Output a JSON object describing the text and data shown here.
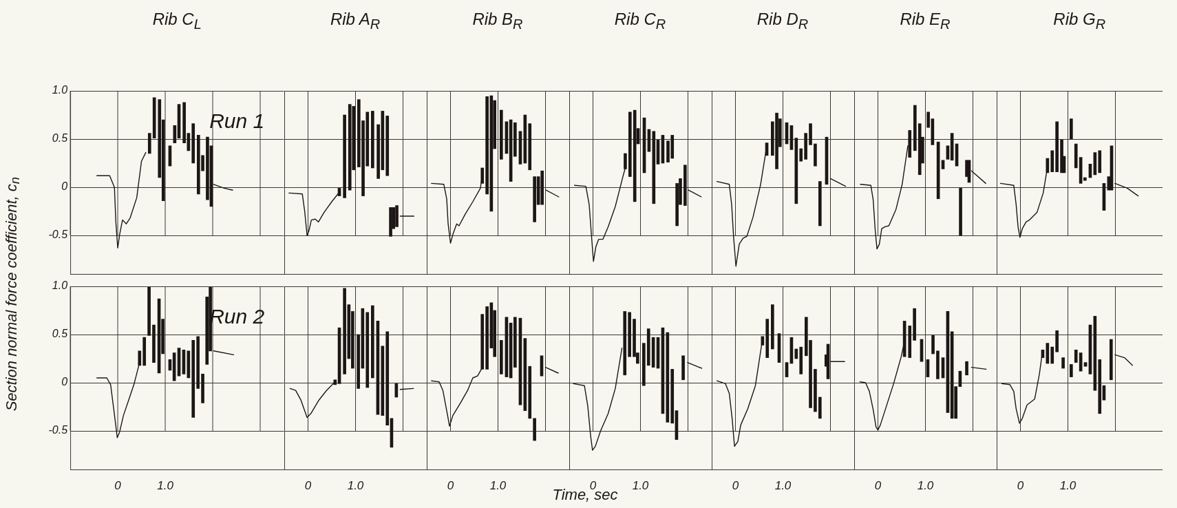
{
  "chart_data": [
    {
      "type": "line",
      "title": "Rib C$_{L}$",
      "ylabel": "Section normal force coefficient, c$_{n}$",
      "annotations": [
        "Run 1"
      ],
      "xlim": [
        -1,
        3.5
      ],
      "ylim": [
        -0.9,
        1
      ],
      "xticks": [
        -1,
        0,
        1,
        2,
        3
      ],
      "yticks": [
        -0.5,
        0,
        0.5,
        {
          "value": 1,
          "label": "1.0"
        }
      ],
      "grid": true,
      "tick_labels": "y",
      "series": [
        {
          "color": "#1c1716",
          "x": [
            -0.44,
            -0.17,
            -0.07,
            -0.04,
            0,
            0.04,
            0.1,
            0.18,
            0.26,
            0.4,
            0.5,
            0.59,
            1.3,
            2.02,
            2.24,
            2.42
          ],
          "values": [
            0.12,
            0.12,
            0,
            -0.36,
            -0.63,
            -0.49,
            -0.34,
            -0.38,
            -0.32,
            -0.11,
            0.27,
            0.36,
            null,
            0.03,
            -0.01,
            -0.03
          ]
        },
        {
          "type": "bar",
          "color": "#1c1716",
          "x": [
            0.67,
            0.77,
            0.88,
            0.96,
            1.1,
            1.2,
            1.29,
            1.4,
            1.49,
            1.59,
            1.7,
            1.79,
            1.89,
            1.97
          ],
          "base": [
            0.35,
            0.51,
            0.1,
            -0.14,
            0.22,
            0.46,
            0.51,
            0.46,
            0.38,
            0.25,
            -0.07,
            0.17,
            -0.13,
            -0.2
          ],
          "values": [
            0.21,
            0.42,
            0.81,
            0.84,
            0.21,
            0.18,
            0.35,
            0.42,
            0.18,
            0.41,
            0.61,
            0.16,
            0.65,
            0.63
          ]
        }
      ]
    },
    {
      "type": "line",
      "title": "Rib A$_{R}$",
      "xlim": [
        -0.5,
        2.5
      ],
      "ylim": [
        -0.9,
        1
      ],
      "xticks": [
        0,
        1,
        2
      ],
      "yticks": [
        -0.5,
        0,
        0.5,
        1
      ],
      "grid": true,
      "tick_labels": false,
      "series": [
        {
          "color": "#1c1716",
          "x": [
            -0.4,
            -0.12,
            -0.07,
            -0.02,
            0.02,
            0.07,
            0.15,
            0.22,
            0.34,
            0.5,
            0.63,
            1.3,
            1.94,
            2.23
          ],
          "values": [
            -0.06,
            -0.07,
            -0.25,
            -0.5,
            -0.45,
            -0.34,
            -0.33,
            -0.36,
            -0.26,
            -0.15,
            -0.07,
            null,
            -0.3,
            -0.3
          ]
        },
        {
          "type": "bar",
          "color": "#1c1716",
          "x": [
            0.66,
            0.77,
            0.88,
            0.96,
            1.07,
            1.16,
            1.25,
            1.36,
            1.48,
            1.57,
            1.67,
            1.74,
            1.8,
            1.87
          ],
          "base": [
            -0.09,
            -0.11,
            -0.03,
            0.18,
            0.21,
            -0.09,
            0.22,
            0.2,
            0.09,
            0.18,
            0.12,
            -0.51,
            -0.43,
            -0.41
          ],
          "values": [
            0.08,
            0.86,
            0.89,
            0.66,
            0.7,
            0.78,
            0.56,
            0.59,
            0.56,
            0.61,
            0.62,
            0.3,
            0.22,
            0.22
          ]
        }
      ]
    },
    {
      "type": "line",
      "title": "Rib B$_{R}$",
      "xlim": [
        -0.5,
        2.5
      ],
      "ylim": [
        -0.9,
        1
      ],
      "xticks": [
        0,
        1,
        2
      ],
      "yticks": [
        -0.5,
        0,
        0.5,
        1
      ],
      "grid": true,
      "tick_labels": false,
      "series": [
        {
          "color": "#1c1716",
          "x": [
            -0.4,
            -0.14,
            -0.08,
            -0.05,
            0,
            0.05,
            0.13,
            0.18,
            0.31,
            0.47,
            0.63,
            0.65,
            1.3,
            2.01,
            2.28
          ],
          "values": [
            0.04,
            0.03,
            -0.12,
            -0.38,
            -0.58,
            -0.49,
            -0.38,
            -0.4,
            -0.28,
            -0.15,
            -0.01,
            0.06,
            null,
            -0.03,
            -0.1
          ]
        },
        {
          "type": "bar",
          "color": "#1c1716",
          "x": [
            0.67,
            0.77,
            0.86,
            0.93,
            1.07,
            1.18,
            1.27,
            1.36,
            1.47,
            1.57,
            1.67,
            1.77,
            1.85,
            1.93
          ],
          "base": [
            0.04,
            -0.07,
            -0.25,
            0.4,
            0.29,
            0.35,
            0.06,
            0.32,
            0.24,
            0.25,
            0.18,
            -0.36,
            -0.18,
            -0.18
          ],
          "values": [
            0.16,
            1.01,
            1.2,
            0.5,
            0.51,
            0.33,
            0.64,
            0.35,
            0.34,
            0.5,
            0.48,
            0.47,
            0.29,
            0.35
          ]
        }
      ]
    },
    {
      "type": "line",
      "title": "Rib C$_{R}$",
      "xlim": [
        -0.5,
        2.5
      ],
      "ylim": [
        -0.9,
        1
      ],
      "xticks": [
        0,
        1,
        2
      ],
      "yticks": [
        -0.5,
        0,
        0.5,
        1
      ],
      "grid": true,
      "tick_labels": false,
      "series": [
        {
          "color": "#1c1716",
          "x": [
            -0.39,
            -0.15,
            -0.08,
            -0.03,
            0.01,
            0.06,
            0.12,
            0.21,
            0.32,
            0.47,
            0.63,
            0.68,
            1.3,
            2.01,
            2.28
          ],
          "values": [
            0.02,
            0.01,
            -0.18,
            -0.51,
            -0.77,
            -0.62,
            -0.54,
            -0.54,
            -0.41,
            -0.2,
            0.11,
            0.2,
            null,
            -0.03,
            -0.1
          ]
        },
        {
          "type": "bar",
          "color": "#1c1716",
          "x": [
            0.68,
            0.78,
            0.88,
            0.95,
            1.08,
            1.18,
            1.28,
            1.37,
            1.47,
            1.58,
            1.67,
            1.77,
            1.84,
            1.94
          ],
          "base": [
            0.19,
            0.11,
            -0.15,
            0.45,
            0.15,
            0.37,
            -0.17,
            0.24,
            0.25,
            0.26,
            0.3,
            -0.4,
            -0.18,
            -0.19
          ],
          "values": [
            0.16,
            0.67,
            0.95,
            0.16,
            0.57,
            0.23,
            0.75,
            0.25,
            0.29,
            0.22,
            0.24,
            0.44,
            0.27,
            0.42
          ]
        }
      ]
    },
    {
      "type": "line",
      "title": "Rib D$_{R}$",
      "xlim": [
        -0.5,
        2.5
      ],
      "ylim": [
        -0.9,
        1
      ],
      "xticks": [
        0,
        1,
        2
      ],
      "yticks": [
        -0.5,
        0,
        0.5,
        1
      ],
      "grid": true,
      "tick_labels": false,
      "series": [
        {
          "color": "#1c1716",
          "x": [
            -0.39,
            -0.13,
            -0.08,
            -0.04,
            0.01,
            0.08,
            0.16,
            0.24,
            0.37,
            0.53,
            0.66,
            1.3,
            2.0,
            2.32
          ],
          "values": [
            0.06,
            0.03,
            -0.18,
            -0.51,
            -0.82,
            -0.59,
            -0.53,
            -0.51,
            -0.31,
            0.03,
            0.43,
            null,
            0.09,
            0.01
          ]
        },
        {
          "type": "bar",
          "color": "#1c1716",
          "x": [
            0.66,
            0.78,
            0.87,
            0.94,
            1.08,
            1.18,
            1.28,
            1.38,
            1.48,
            1.58,
            1.68,
            1.78,
            1.92
          ],
          "base": [
            0.33,
            0.33,
            0.19,
            0.42,
            0.45,
            0.39,
            -0.17,
            0.27,
            0.29,
            0.44,
            0.22,
            -0.4,
            0.03
          ],
          "values": [
            0.13,
            0.35,
            0.58,
            0.29,
            0.22,
            0.25,
            0.68,
            0.13,
            0.27,
            0.22,
            0.23,
            0.46,
            0.49
          ]
        }
      ]
    },
    {
      "type": "line",
      "title": "Rib E$_{R}$",
      "xlim": [
        -0.5,
        2.5
      ],
      "ylim": [
        -0.9,
        1
      ],
      "xticks": [
        0,
        1,
        2
      ],
      "yticks": [
        -0.5,
        0,
        0.5,
        1
      ],
      "grid": true,
      "tick_labels": false,
      "series": [
        {
          "color": "#1c1716",
          "x": [
            -0.37,
            -0.15,
            -0.1,
            -0.06,
            -0.02,
            0.03,
            0.08,
            0.15,
            0.23,
            0.38,
            0.51,
            0.63,
            1.3,
            1.97,
            2.27
          ],
          "values": [
            0.03,
            0.02,
            -0.13,
            -0.43,
            -0.64,
            -0.59,
            -0.43,
            -0.41,
            -0.4,
            -0.23,
            0.03,
            0.43,
            null,
            0.17,
            0.04
          ]
        },
        {
          "type": "bar",
          "color": "#1c1716",
          "x": [
            0.67,
            0.78,
            0.88,
            0.94,
            1.06,
            1.15,
            1.27,
            1.37,
            1.47,
            1.56,
            1.66,
            1.74,
            1.87,
            1.92
          ],
          "base": [
            0.31,
            0.38,
            0.13,
            0.25,
            0.62,
            0.44,
            -0.12,
            0.19,
            0.29,
            0.28,
            0.22,
            -0.5,
            0.11,
            0.05
          ],
          "values": [
            0.28,
            0.47,
            0.53,
            0.27,
            0.16,
            0.27,
            0.59,
            0.09,
            0.14,
            0.28,
            0.23,
            0.49,
            0.17,
            0.23
          ]
        }
      ]
    },
    {
      "type": "line",
      "title": "Rib G$_{R}$",
      "xlim": [
        -0.5,
        3
      ],
      "ylim": [
        -0.9,
        1
      ],
      "xticks": [
        0,
        1,
        2
      ],
      "yticks": [
        -0.5,
        0,
        0.5,
        1
      ],
      "grid": true,
      "tick_labels": false,
      "series": [
        {
          "color": "#1c1716",
          "x": [
            -0.42,
            -0.14,
            -0.09,
            -0.05,
            -0.01,
            0.04,
            0.12,
            0.19,
            0.35,
            0.48,
            0.55,
            1.3,
            1.99,
            2.25,
            2.48
          ],
          "values": [
            0.04,
            0.02,
            -0.18,
            -0.41,
            -0.52,
            -0.43,
            -0.36,
            -0.34,
            -0.26,
            -0.06,
            0.15,
            null,
            0.04,
            -0.01,
            -0.09
          ]
        },
        {
          "type": "bar",
          "color": "#1c1716",
          "x": [
            0.57,
            0.67,
            0.77,
            0.87,
            0.92,
            1.07,
            1.17,
            1.27,
            1.36,
            1.47,
            1.57,
            1.67,
            1.76,
            1.86,
            1.92
          ],
          "base": [
            0.15,
            0.16,
            0.16,
            0.15,
            0.15,
            0.5,
            0.2,
            0.04,
            0.07,
            0.1,
            0.13,
            0.15,
            -0.24,
            -0.03,
            -0.03
          ],
          "values": [
            0.15,
            0.22,
            0.52,
            0.34,
            0.17,
            0.21,
            0.25,
            0.27,
            0.03,
            0.14,
            0.23,
            0.23,
            0.28,
            0.14,
            0.46
          ]
        }
      ]
    },
    {
      "type": "line",
      "annotations": [
        "Run 2"
      ],
      "xlim": [
        -1,
        3.5
      ],
      "ylim": [
        -0.9,
        1
      ],
      "xticks": [
        {
          "value": -1,
          "label": null
        },
        0,
        {
          "value": 1,
          "label": "1.0"
        },
        {
          "value": 2,
          "label": null
        },
        {
          "value": 3,
          "label": null
        }
      ],
      "yticks": [
        -0.5,
        0,
        0.5,
        {
          "value": 1,
          "label": "1.0"
        }
      ],
      "grid": true,
      "series": [
        {
          "color": "#1c1716",
          "x": [
            -0.44,
            -0.23,
            -0.15,
            -0.08,
            -0.01,
            0.04,
            0.12,
            0.23,
            0.34,
            0.45,
            1.3,
            2.02,
            2.44
          ],
          "values": [
            0.05,
            0.05,
            -0.02,
            -0.29,
            -0.57,
            -0.51,
            -0.34,
            -0.18,
            -0.02,
            0.19,
            null,
            0.33,
            0.29
          ]
        },
        {
          "type": "bar",
          "color": "#1c1716",
          "x": [
            0.46,
            0.56,
            0.66,
            0.76,
            0.87,
            0.95,
            1.1,
            1.19,
            1.29,
            1.39,
            1.49,
            1.59,
            1.69,
            1.79,
            1.88,
            1.95
          ],
          "base": [
            0.18,
            0.18,
            0.49,
            0.21,
            0.1,
            0.3,
            0.13,
            0.02,
            0.07,
            0.09,
            0.05,
            -0.36,
            -0.06,
            -0.21,
            0.19,
            0.33
          ],
          "values": [
            0.15,
            0.29,
            0.5,
            0.39,
            0.77,
            0.36,
            0.11,
            0.29,
            0.29,
            0.25,
            0.28,
            0.8,
            0.54,
            0.3,
            0.7,
            0.66
          ]
        }
      ]
    },
    {
      "type": "line",
      "xlim": [
        -0.5,
        2.5
      ],
      "ylim": [
        -0.9,
        1
      ],
      "xticks": [
        0,
        {
          "value": 1,
          "label": "1.0"
        },
        {
          "value": 2,
          "label": null
        }
      ],
      "yticks": [
        -0.5,
        0,
        0.5,
        1
      ],
      "grid": true,
      "tick_labels": "x",
      "series": [
        {
          "color": "#1c1716",
          "x": [
            -0.38,
            -0.26,
            -0.15,
            -0.02,
            0.06,
            0.23,
            0.39,
            0.55,
            1.3,
            1.94,
            2.22
          ],
          "values": [
            -0.06,
            -0.08,
            -0.18,
            -0.36,
            -0.32,
            -0.18,
            -0.08,
            0,
            null,
            -0.07,
            -0.06
          ]
        },
        {
          "type": "bar",
          "color": "#1c1716",
          "x": [
            0.57,
            0.66,
            0.77,
            0.86,
            0.94,
            1.06,
            1.15,
            1.25,
            1.36,
            1.47,
            1.57,
            1.67,
            1.76,
            1.86
          ],
          "base": [
            -0.02,
            -0.01,
            0.09,
            0.25,
            0.15,
            -0.06,
            0.15,
            -0.05,
            0.05,
            -0.33,
            -0.34,
            -0.44,
            -0.67,
            -0.15
          ],
          "values": [
            0.05,
            0.58,
            0.89,
            0.56,
            0.59,
            0.56,
            0.62,
            0.78,
            0.75,
            0.97,
            0.72,
            0.97,
            0.3,
            0.14
          ]
        }
      ]
    },
    {
      "type": "line",
      "xlim": [
        -0.5,
        2.5
      ],
      "ylim": [
        -0.9,
        1
      ],
      "xticks": [
        0,
        {
          "value": 1,
          "label": "1.0"
        },
        {
          "value": 2,
          "label": null
        }
      ],
      "yticks": [
        -0.5,
        0,
        0.5,
        1
      ],
      "grid": true,
      "tick_labels": "x",
      "series": [
        {
          "color": "#1c1716",
          "x": [
            -0.4,
            -0.24,
            -0.16,
            -0.08,
            -0.02,
            0.05,
            0.21,
            0.36,
            0.47,
            0.57,
            0.65,
            1.3,
            2.0,
            2.27
          ],
          "values": [
            0.02,
            0.01,
            -0.08,
            -0.29,
            -0.45,
            -0.34,
            -0.21,
            -0.08,
            0.05,
            0.07,
            0.14,
            null,
            0.16,
            0.1
          ]
        },
        {
          "type": "bar",
          "color": "#1c1716",
          "x": [
            0.67,
            0.77,
            0.86,
            0.93,
            1.07,
            1.18,
            1.27,
            1.36,
            1.47,
            1.57,
            1.67,
            1.77,
            1.92
          ],
          "base": [
            0.14,
            0.14,
            0.36,
            0.27,
            0.09,
            0.06,
            0.05,
            0.16,
            -0.23,
            -0.29,
            -0.37,
            -0.6,
            0.07
          ],
          "values": [
            0.57,
            0.65,
            0.47,
            0.48,
            0.35,
            0.62,
            0.57,
            0.52,
            0.9,
            0.75,
            0.54,
            0.23,
            0.21
          ]
        }
      ]
    },
    {
      "type": "line",
      "xlabel": "Time, sec",
      "xlim": [
        -0.5,
        2.5
      ],
      "ylim": [
        -0.9,
        1
      ],
      "xticks": [
        0,
        {
          "value": 1,
          "label": "1.0"
        },
        {
          "value": 2,
          "label": null
        }
      ],
      "yticks": [
        -0.5,
        0,
        0.5,
        1
      ],
      "grid": true,
      "tick_labels": "x",
      "series": [
        {
          "color": "#1c1716",
          "x": [
            -0.41,
            -0.18,
            -0.11,
            -0.05,
            -0.01,
            0.05,
            0.16,
            0.32,
            0.47,
            0.61,
            1.3,
            1.99,
            2.29
          ],
          "values": [
            -0.01,
            -0.03,
            -0.24,
            -0.55,
            -0.7,
            -0.66,
            -0.5,
            -0.32,
            -0.06,
            0.36,
            null,
            0.21,
            0.15
          ]
        },
        {
          "type": "bar",
          "color": "#1c1716",
          "x": [
            0.67,
            0.77,
            0.87,
            0.94,
            1.07,
            1.17,
            1.27,
            1.37,
            1.47,
            1.57,
            1.67,
            1.76,
            1.9
          ],
          "base": [
            0.08,
            0.27,
            0.27,
            0.2,
            -0.03,
            0.18,
            0.16,
            0.15,
            -0.32,
            -0.41,
            -0.42,
            -0.59,
            0.03
          ],
          "values": [
            0.66,
            0.46,
            0.39,
            0.11,
            0.44,
            0.38,
            0.31,
            0.32,
            0.89,
            0.93,
            0.56,
            0.3,
            0.25
          ]
        }
      ]
    },
    {
      "type": "line",
      "xlim": [
        -0.5,
        2.5
      ],
      "ylim": [
        -0.9,
        1
      ],
      "xticks": [
        0,
        {
          "value": 1,
          "label": "1.0"
        },
        {
          "value": 2,
          "label": null
        }
      ],
      "yticks": [
        -0.5,
        0,
        0.5,
        1
      ],
      "grid": true,
      "tick_labels": "x",
      "series": [
        {
          "color": "#1c1716",
          "x": [
            -0.39,
            -0.21,
            -0.13,
            -0.07,
            -0.02,
            0.05,
            0.11,
            0.26,
            0.42,
            0.55,
            1.3,
            2.0,
            2.3
          ],
          "values": [
            0.02,
            -0.01,
            -0.11,
            -0.37,
            -0.66,
            -0.61,
            -0.44,
            -0.27,
            -0.03,
            0.39,
            null,
            0.22,
            0.22
          ]
        },
        {
          "type": "bar",
          "color": "#1c1716",
          "x": [
            0.57,
            0.67,
            0.78,
            0.92,
            1.08,
            1.18,
            1.28,
            1.38,
            1.49,
            1.58,
            1.68,
            1.78,
            1.91,
            1.95
          ],
          "base": [
            0.39,
            0.26,
            0.35,
            0.21,
            0.06,
            0.2,
            0.25,
            0.09,
            0.28,
            -0.26,
            -0.3,
            -0.37,
            0.17,
            0.04
          ],
          "values": [
            0.09,
            0.4,
            0.46,
            0.3,
            0.15,
            0.27,
            0.1,
            0.28,
            0.4,
            0.7,
            0.44,
            0.22,
            0.12,
            0.36
          ]
        }
      ]
    },
    {
      "type": "line",
      "xlim": [
        -0.5,
        2.5
      ],
      "ylim": [
        -0.9,
        1
      ],
      "xticks": [
        0,
        {
          "value": 1,
          "label": "1.0"
        },
        {
          "value": 2,
          "label": null
        }
      ],
      "yticks": [
        -0.5,
        0,
        0.5,
        1
      ],
      "grid": true,
      "tick_labels": "x",
      "series": [
        {
          "color": "#1c1716",
          "x": [
            -0.38,
            -0.26,
            -0.18,
            -0.1,
            -0.04,
            0,
            0.05,
            0.18,
            0.33,
            0.49,
            0.55,
            1.3,
            1.97,
            2.28
          ],
          "values": [
            0.01,
            0,
            -0.09,
            -0.28,
            -0.46,
            -0.49,
            -0.44,
            -0.24,
            -0.01,
            0.27,
            0.41,
            null,
            0.16,
            0.14
          ]
        },
        {
          "type": "bar",
          "color": "#1c1716",
          "x": [
            0.56,
            0.67,
            0.77,
            0.92,
            1.05,
            1.16,
            1.26,
            1.37,
            1.47,
            1.56,
            1.64,
            1.73,
            1.87
          ],
          "base": [
            0.27,
            0.26,
            0.44,
            0.22,
            0.06,
            0.3,
            0.04,
            0.05,
            -0.31,
            -0.37,
            -0.37,
            -0.04,
            0.08
          ],
          "values": [
            0.37,
            0.33,
            0.33,
            0.23,
            0.18,
            0.19,
            0.29,
            0.21,
            1.05,
            0.9,
            0.33,
            0.16,
            0.14
          ]
        }
      ]
    },
    {
      "type": "line",
      "xlim": [
        -0.5,
        3
      ],
      "ylim": [
        -0.9,
        1
      ],
      "xticks": [
        0,
        {
          "value": 1,
          "label": "1.0"
        },
        {
          "value": 2,
          "label": null
        }
      ],
      "yticks": [
        -0.5,
        0,
        0.5,
        1
      ],
      "grid": true,
      "tick_labels": "x",
      "series": [
        {
          "color": "#1c1716",
          "x": [
            -0.39,
            -0.22,
            -0.14,
            -0.09,
            -0.02,
            0.04,
            0.14,
            0.3,
            0.4,
            0.45,
            1.3,
            1.99,
            2.19,
            2.36
          ],
          "values": [
            -0.01,
            -0.02,
            -0.09,
            -0.27,
            -0.42,
            -0.37,
            -0.23,
            -0.17,
            0.09,
            0.27,
            null,
            0.29,
            0.26,
            0.18
          ]
        },
        {
          "type": "bar",
          "color": "#1c1716",
          "x": [
            0.47,
            0.57,
            0.67,
            0.77,
            0.9,
            1.07,
            1.17,
            1.27,
            1.37,
            1.47,
            1.57,
            1.67,
            1.76,
            1.91
          ],
          "base": [
            0.26,
            0.2,
            0.2,
            0.32,
            0.15,
            0.06,
            0.21,
            0.12,
            0.17,
            0.09,
            -0.08,
            -0.32,
            -0.18,
            0.03
          ],
          "values": [
            0.08,
            0.21,
            0.17,
            0.22,
            0.11,
            0.13,
            0.13,
            0.19,
            0.04,
            0.51,
            0.77,
            0.56,
            0.15,
            0.42
          ]
        }
      ]
    }
  ]
}
